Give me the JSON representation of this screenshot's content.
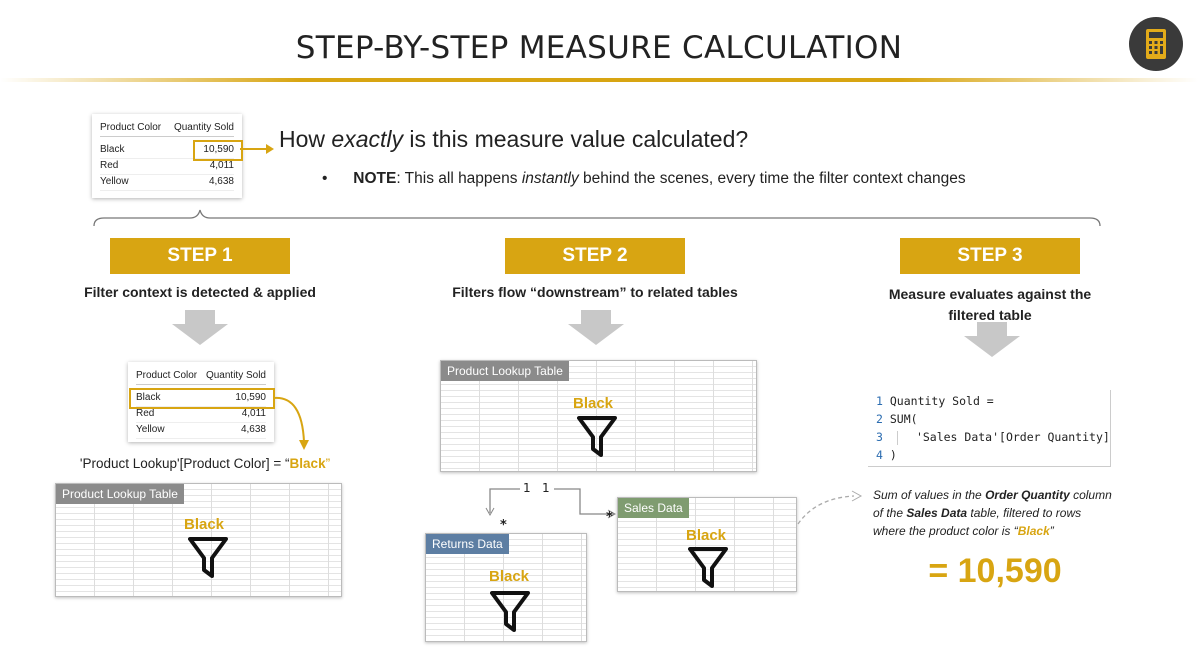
{
  "header": {
    "title": "STEP-BY-STEP MEASURE CALCULATION"
  },
  "intro_table": {
    "columns": [
      "Product Color",
      "Quantity Sold"
    ],
    "rows": [
      [
        "Black",
        "10,590"
      ],
      [
        "Red",
        "4,011"
      ],
      [
        "Yellow",
        "4,638"
      ]
    ]
  },
  "question": {
    "before": "How ",
    "emphasis": "exactly",
    "after": " is this measure value calculated?"
  },
  "note": {
    "label": "NOTE",
    "text_before": ": This all happens ",
    "emphasis": "instantly",
    "text_after": " behind the scenes, every time the filter context changes"
  },
  "steps": [
    {
      "label": "STEP 1",
      "caption": "Filter context is detected & applied"
    },
    {
      "label": "STEP 2",
      "caption": "Filters flow “downstream” to related tables"
    },
    {
      "label": "STEP 3",
      "caption": "Measure evaluates against the filtered table"
    }
  ],
  "step1": {
    "table": {
      "columns": [
        "Product Color",
        "Quantity Sold"
      ],
      "rows": [
        [
          "Black",
          "10,590"
        ],
        [
          "Red",
          "4,011"
        ],
        [
          "Yellow",
          "4,638"
        ]
      ]
    },
    "expression": {
      "prefix": "'Product Lookup'[Product Color] = “",
      "value": "Black",
      "suffix": "”"
    },
    "screenshot": {
      "title": "Product Lookup Table",
      "filter": "Black"
    }
  },
  "step2": {
    "product": {
      "title": "Product Lookup Table",
      "filter": "Black"
    },
    "returns": {
      "title": "Returns Data",
      "filter": "Black"
    },
    "sales": {
      "title": "Sales Data",
      "filter": "Black"
    },
    "relationships": {
      "one_left": "1",
      "one_right": "1",
      "many_returns": "*",
      "many_sales": "*"
    }
  },
  "step3": {
    "code": [
      {
        "number": "1",
        "text": "Quantity Sold ="
      },
      {
        "number": "2",
        "text": "SUM("
      },
      {
        "number": "3",
        "text": "'Sales Data'[Order Quantity]"
      },
      {
        "number": "4",
        "text": ")"
      }
    ],
    "description": {
      "p1": "Sum of values in the ",
      "b1": "Order Quantity",
      "p2": " column of the ",
      "b2": "Sales Data",
      "p3": " table, filtered to rows where the product color is “",
      "b3": "Black",
      "p4": "”"
    },
    "result": "= 10,590"
  }
}
